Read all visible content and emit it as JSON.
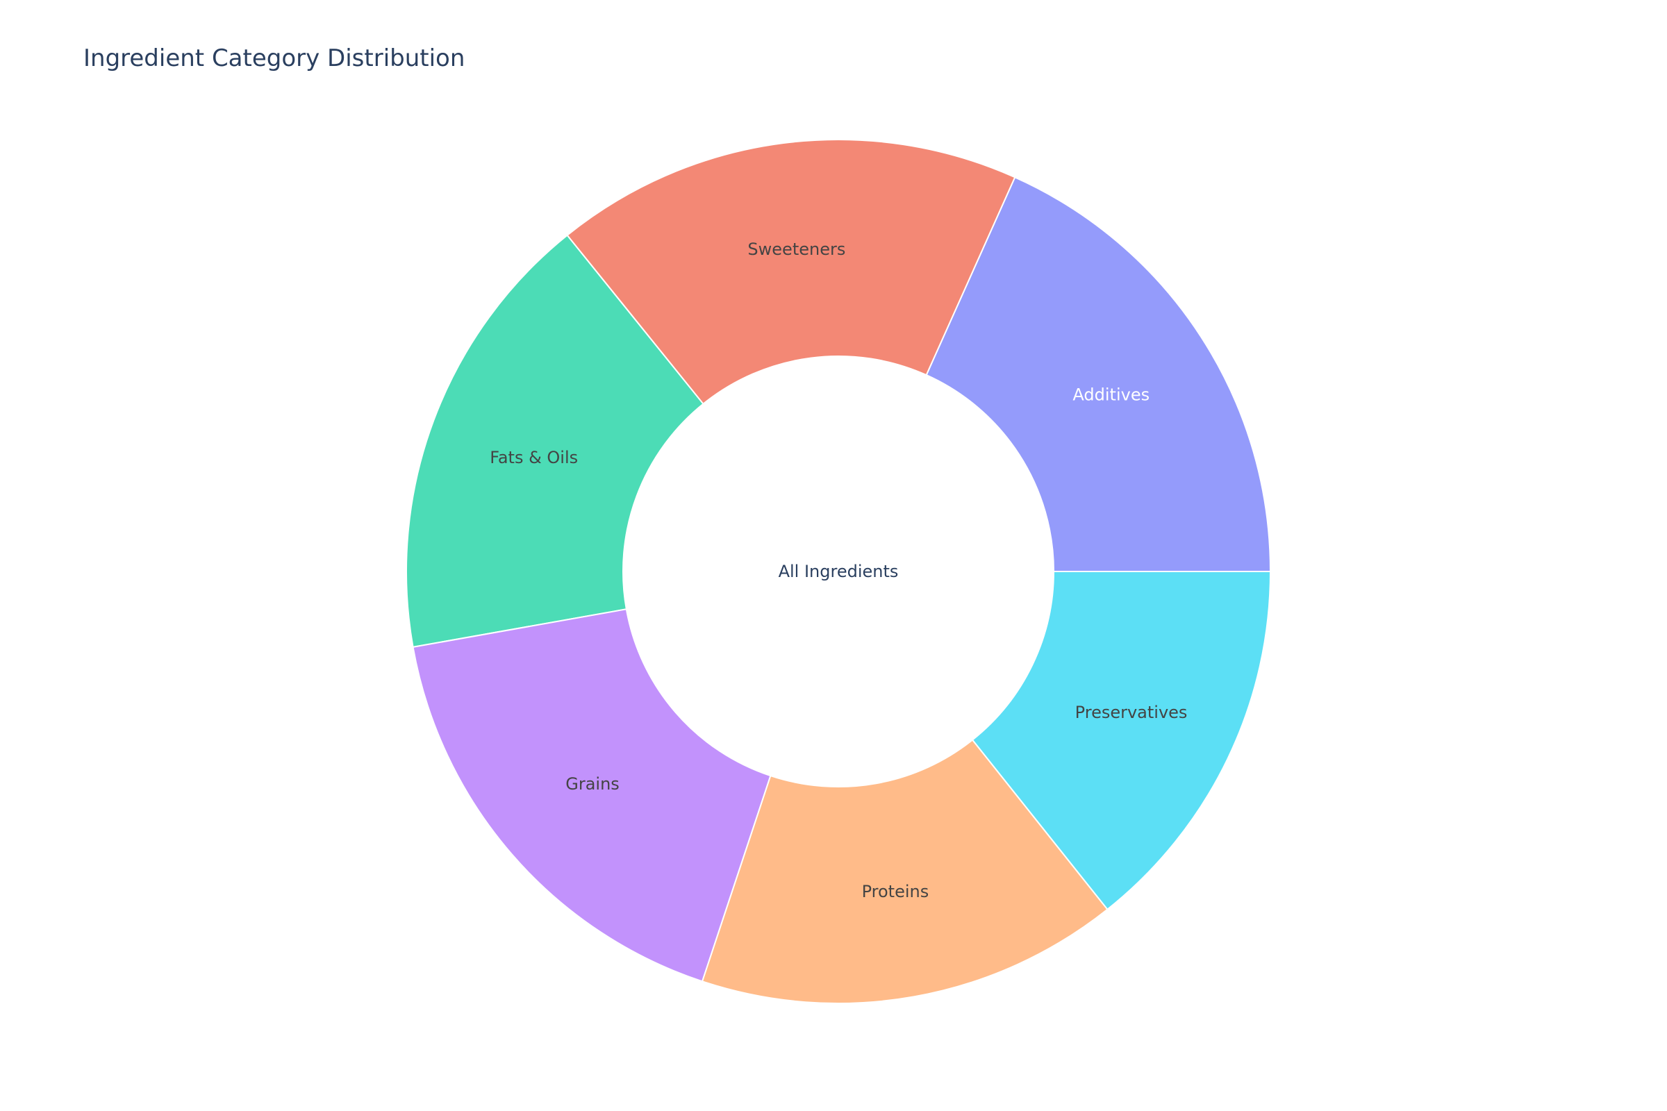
{
  "chart_data": {
    "type": "pie",
    "title": "Ingredient Category Distribution",
    "center_label": "All Ingredients",
    "hole": true,
    "direction": "counterclockwise",
    "start_angle_deg": 0,
    "categories": [
      "Additives",
      "Sweeteners",
      "Fats & Oils",
      "Grains",
      "Proteins",
      "Preservatives"
    ],
    "values": [
      18.3,
      17.5,
      17.0,
      17.1,
      15.8,
      14.3
    ],
    "colors": [
      "#949bfb",
      "#f38875",
      "#4cdcb6",
      "#c292fc",
      "#ffbb89",
      "#5cdff5"
    ],
    "label_colors": [
      "#ffffff",
      "#444444",
      "#444444",
      "#444444",
      "#444444",
      "#444444"
    ]
  }
}
